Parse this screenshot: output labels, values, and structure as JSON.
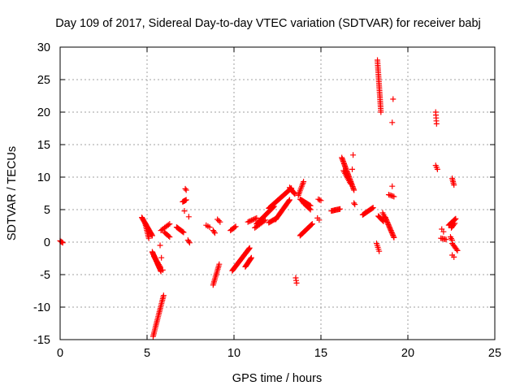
{
  "chart_data": {
    "type": "scatter",
    "title": "Day 109 of 2017, Sidereal Day-to-day VTEC variation (SDTVAR) for receiver babj",
    "xlabel": "GPS time / hours",
    "ylabel": "SDTVAR / TECUs",
    "xlim": [
      0,
      25
    ],
    "ylim": [
      -15,
      30
    ],
    "xticks": [
      0,
      5,
      10,
      15,
      20,
      25
    ],
    "yticks": [
      -15,
      -10,
      -5,
      0,
      5,
      10,
      15,
      20,
      25,
      30
    ],
    "grid": true,
    "marker": "+",
    "color": "#ff0000",
    "segments": [
      {
        "x0": 0.0,
        "x1": 0.15,
        "y0": 0.2,
        "y1": -0.1,
        "n": 4
      },
      {
        "x0": 4.7,
        "x1": 5.3,
        "y0": 3.8,
        "y1": 1.0,
        "n": 20
      },
      {
        "x0": 4.9,
        "x1": 5.1,
        "y0": 2.8,
        "y1": 0.6,
        "n": 10
      },
      {
        "x0": 5.3,
        "x1": 5.8,
        "y0": -1.5,
        "y1": -4.5,
        "n": 22
      },
      {
        "x0": 5.4,
        "x1": 5.75,
        "y0": -2.2,
        "y1": -3.8,
        "n": 10
      },
      {
        "x0": 5.35,
        "x1": 5.95,
        "y0": -14.5,
        "y1": -8.2,
        "n": 26
      },
      {
        "x0": 5.75,
        "x1": 5.9,
        "y0": -0.5,
        "y1": -4.3,
        "n": 3
      },
      {
        "x0": 5.8,
        "x1": 6.3,
        "y0": 1.8,
        "y1": 2.8,
        "n": 8
      },
      {
        "x0": 6.0,
        "x1": 6.3,
        "y0": 1.5,
        "y1": 0.8,
        "n": 6
      },
      {
        "x0": 6.7,
        "x1": 7.1,
        "y0": 2.3,
        "y1": 1.5,
        "n": 10
      },
      {
        "x0": 7.05,
        "x1": 7.25,
        "y0": 6.2,
        "y1": 6.5,
        "n": 6
      },
      {
        "x0": 7.2,
        "x1": 7.25,
        "y0": 8.2,
        "y1": 8.0,
        "n": 2
      },
      {
        "x0": 7.15,
        "x1": 7.2,
        "y0": 4.8,
        "y1": 4.8,
        "n": 1
      },
      {
        "x0": 7.4,
        "x1": 7.5,
        "y0": 3.9,
        "y1": 3.9,
        "n": 1
      },
      {
        "x0": 7.35,
        "x1": 7.45,
        "y0": 0.3,
        "y1": -0.1,
        "n": 3
      },
      {
        "x0": 8.4,
        "x1": 8.6,
        "y0": 2.6,
        "y1": 2.3,
        "n": 3
      },
      {
        "x0": 8.8,
        "x1": 8.9,
        "y0": 1.8,
        "y1": 1.4,
        "n": 3
      },
      {
        "x0": 8.8,
        "x1": 9.15,
        "y0": -6.6,
        "y1": -3.4,
        "n": 14
      },
      {
        "x0": 9.05,
        "x1": 9.2,
        "y0": 3.5,
        "y1": 3.1,
        "n": 3
      },
      {
        "x0": 9.8,
        "x1": 10.1,
        "y0": 1.8,
        "y1": 2.4,
        "n": 6
      },
      {
        "x0": 9.9,
        "x1": 10.9,
        "y0": -4.4,
        "y1": -0.9,
        "n": 32
      },
      {
        "x0": 10.65,
        "x1": 11.0,
        "y0": -3.8,
        "y1": -2.4,
        "n": 12
      },
      {
        "x0": 10.8,
        "x1": 11.3,
        "y0": 3.1,
        "y1": 3.7,
        "n": 8
      },
      {
        "x0": 11.3,
        "x1": 12.3,
        "y0": 2.8,
        "y1": 5.5,
        "n": 26
      },
      {
        "x0": 11.2,
        "x1": 11.8,
        "y0": 2.2,
        "y1": 3.4,
        "n": 10
      },
      {
        "x0": 12.0,
        "x1": 12.4,
        "y0": 3.0,
        "y1": 3.6,
        "n": 8
      },
      {
        "x0": 12.0,
        "x1": 13.3,
        "y0": 5.2,
        "y1": 8.3,
        "n": 32
      },
      {
        "x0": 12.4,
        "x1": 13.2,
        "y0": 3.5,
        "y1": 6.5,
        "n": 22
      },
      {
        "x0": 13.2,
        "x1": 13.5,
        "y0": 8.4,
        "y1": 7.4,
        "n": 10
      },
      {
        "x0": 13.55,
        "x1": 13.6,
        "y0": -5.5,
        "y1": -6.3,
        "n": 3
      },
      {
        "x0": 13.7,
        "x1": 14.0,
        "y0": 7.2,
        "y1": 9.3,
        "n": 10
      },
      {
        "x0": 13.8,
        "x1": 14.4,
        "y0": 6.6,
        "y1": 5.6,
        "n": 14
      },
      {
        "x0": 14.0,
        "x1": 14.4,
        "y0": 6.0,
        "y1": 5.0,
        "n": 8
      },
      {
        "x0": 13.8,
        "x1": 14.5,
        "y0": 1.0,
        "y1": 2.8,
        "n": 18
      },
      {
        "x0": 14.85,
        "x1": 15.0,
        "y0": 6.6,
        "y1": 6.4,
        "n": 3
      },
      {
        "x0": 14.8,
        "x1": 14.9,
        "y0": 3.7,
        "y1": 3.4,
        "n": 2
      },
      {
        "x0": 15.6,
        "x1": 16.1,
        "y0": 4.8,
        "y1": 5.1,
        "n": 10
      },
      {
        "x0": 16.2,
        "x1": 16.9,
        "y0": 13.0,
        "y1": 8.0,
        "n": 28
      },
      {
        "x0": 16.3,
        "x1": 16.7,
        "y0": 11.0,
        "y1": 9.0,
        "n": 10
      },
      {
        "x0": 16.8,
        "x1": 16.9,
        "y0": 11.2,
        "y1": 11.2,
        "n": 1
      },
      {
        "x0": 16.85,
        "x1": 16.9,
        "y0": 13.4,
        "y1": 13.4,
        "n": 1
      },
      {
        "x0": 16.9,
        "x1": 16.95,
        "y0": 6.0,
        "y1": 5.8,
        "n": 2
      },
      {
        "x0": 17.4,
        "x1": 18.0,
        "y0": 4.2,
        "y1": 5.3,
        "n": 14
      },
      {
        "x0": 18.25,
        "x1": 18.45,
        "y0": 28.0,
        "y1": 20.0,
        "n": 30
      },
      {
        "x0": 18.2,
        "x1": 18.35,
        "y0": -0.2,
        "y1": -1.4,
        "n": 5
      },
      {
        "x0": 18.3,
        "x1": 18.6,
        "y0": 4.0,
        "y1": 3.2,
        "n": 8
      },
      {
        "x0": 18.55,
        "x1": 18.7,
        "y0": 4.5,
        "y1": 3.7,
        "n": 4
      },
      {
        "x0": 18.7,
        "x1": 19.2,
        "y0": 3.8,
        "y1": 0.7,
        "n": 18
      },
      {
        "x0": 18.9,
        "x1": 19.2,
        "y0": 7.3,
        "y1": 7.0,
        "n": 5
      },
      {
        "x0": 19.1,
        "x1": 19.15,
        "y0": 8.6,
        "y1": 8.6,
        "n": 1
      },
      {
        "x0": 19.15,
        "x1": 19.2,
        "y0": 22.0,
        "y1": 22.0,
        "n": 1
      },
      {
        "x0": 19.1,
        "x1": 19.15,
        "y0": 18.4,
        "y1": 18.4,
        "n": 1
      },
      {
        "x0": 21.6,
        "x1": 21.65,
        "y0": 20.0,
        "y1": 18.2,
        "n": 5
      },
      {
        "x0": 21.6,
        "x1": 21.7,
        "y0": 11.8,
        "y1": 11.2,
        "n": 3
      },
      {
        "x0": 21.95,
        "x1": 22.05,
        "y0": 2.0,
        "y1": 1.6,
        "n": 2
      },
      {
        "x0": 21.9,
        "x1": 22.2,
        "y0": 0.6,
        "y1": 0.4,
        "n": 5
      },
      {
        "x0": 22.35,
        "x1": 22.75,
        "y0": 2.6,
        "y1": 3.6,
        "n": 12
      },
      {
        "x0": 22.5,
        "x1": 22.7,
        "y0": 2.2,
        "y1": 2.9,
        "n": 5
      },
      {
        "x0": 22.55,
        "x1": 22.65,
        "y0": 9.8,
        "y1": 8.8,
        "n": 5
      },
      {
        "x0": 22.45,
        "x1": 22.55,
        "y0": 0.8,
        "y1": 0.3,
        "n": 3
      },
      {
        "x0": 22.55,
        "x1": 22.85,
        "y0": -0.2,
        "y1": -1.3,
        "n": 7
      },
      {
        "x0": 22.55,
        "x1": 22.65,
        "y0": -2.0,
        "y1": -2.3,
        "n": 2
      }
    ]
  }
}
